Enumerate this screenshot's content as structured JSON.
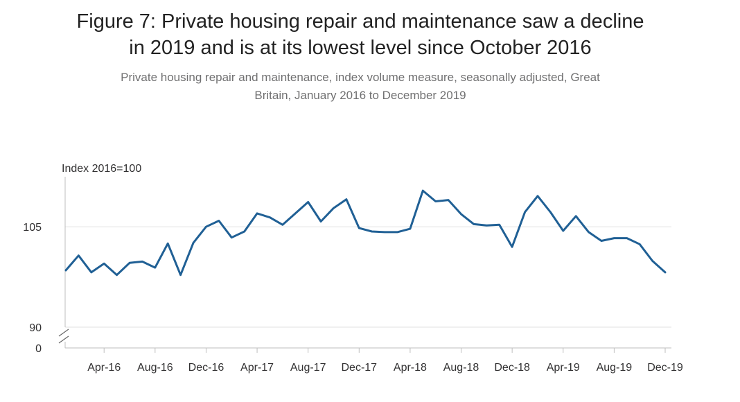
{
  "header": {
    "title_line1": "Figure 7: Private housing repair and maintenance saw a decline",
    "title_line2": "in 2019 and is at its lowest level since October 2016",
    "subtitle_line1": "Private housing repair and maintenance, index volume measure, seasonally adjusted, Great",
    "subtitle_line2": "Britain, January 2016 to December 2019"
  },
  "colors": {
    "line": "#206095",
    "grid": "#e0e0e0",
    "axis": "#bebebe",
    "text": "#323132"
  },
  "chart_data": {
    "type": "line",
    "title": "Figure 7: Private housing repair and maintenance saw a decline in 2019 and is at its lowest level since October 2016",
    "subtitle": "Private housing repair and maintenance, index volume measure, seasonally adjusted, Great Britain, January 2016 to December 2019",
    "ylabel": "Index 2016=100",
    "xlabel": "",
    "broken_axis": true,
    "y_ticks": [
      0,
      90,
      105
    ],
    "y_tick_labels": [
      "0",
      "90",
      "105"
    ],
    "ylim_display": [
      90,
      113
    ],
    "grid": true,
    "x_tick_labels": [
      "Apr-16",
      "Aug-16",
      "Dec-16",
      "Apr-17",
      "Aug-17",
      "Dec-17",
      "Apr-18",
      "Aug-18",
      "Dec-18",
      "Apr-19",
      "Aug-19",
      "Dec-19"
    ],
    "x_tick_months": [
      "2016-04",
      "2016-08",
      "2016-12",
      "2017-04",
      "2017-08",
      "2017-12",
      "2018-04",
      "2018-08",
      "2018-12",
      "2019-04",
      "2019-08",
      "2019-12"
    ],
    "series": [
      {
        "x": [
          "2016-01",
          "2016-02",
          "2016-03",
          "2016-04",
          "2016-05",
          "2016-06",
          "2016-07",
          "2016-08",
          "2016-09",
          "2016-10",
          "2016-11",
          "2016-12",
          "2017-01",
          "2017-02",
          "2017-03",
          "2017-04",
          "2017-05",
          "2017-06",
          "2017-07",
          "2017-08",
          "2017-09",
          "2017-10",
          "2017-11",
          "2017-12",
          "2018-01",
          "2018-02",
          "2018-03",
          "2018-04",
          "2018-05",
          "2018-06",
          "2018-07",
          "2018-08",
          "2018-09",
          "2018-10",
          "2018-11",
          "2018-12",
          "2019-01",
          "2019-02",
          "2019-03",
          "2019-04",
          "2019-05",
          "2019-06",
          "2019-07",
          "2019-08",
          "2019-09",
          "2019-10",
          "2019-11",
          "2019-12"
        ],
        "values": [
          98.5,
          100.7,
          98.2,
          99.5,
          97.8,
          99.6,
          99.8,
          98.9,
          102.5,
          97.8,
          102.6,
          105.0,
          105.9,
          103.4,
          104.3,
          107.0,
          106.4,
          105.3,
          107.0,
          108.7,
          105.8,
          107.8,
          109.1,
          104.8,
          104.3,
          104.2,
          104.2,
          104.7,
          110.4,
          108.8,
          109.0,
          106.9,
          105.4,
          105.2,
          105.3,
          102.0,
          107.2,
          109.6,
          107.2,
          104.4,
          106.6,
          104.2,
          102.9,
          103.3,
          103.3,
          102.4,
          99.9,
          98.2
        ]
      }
    ]
  }
}
